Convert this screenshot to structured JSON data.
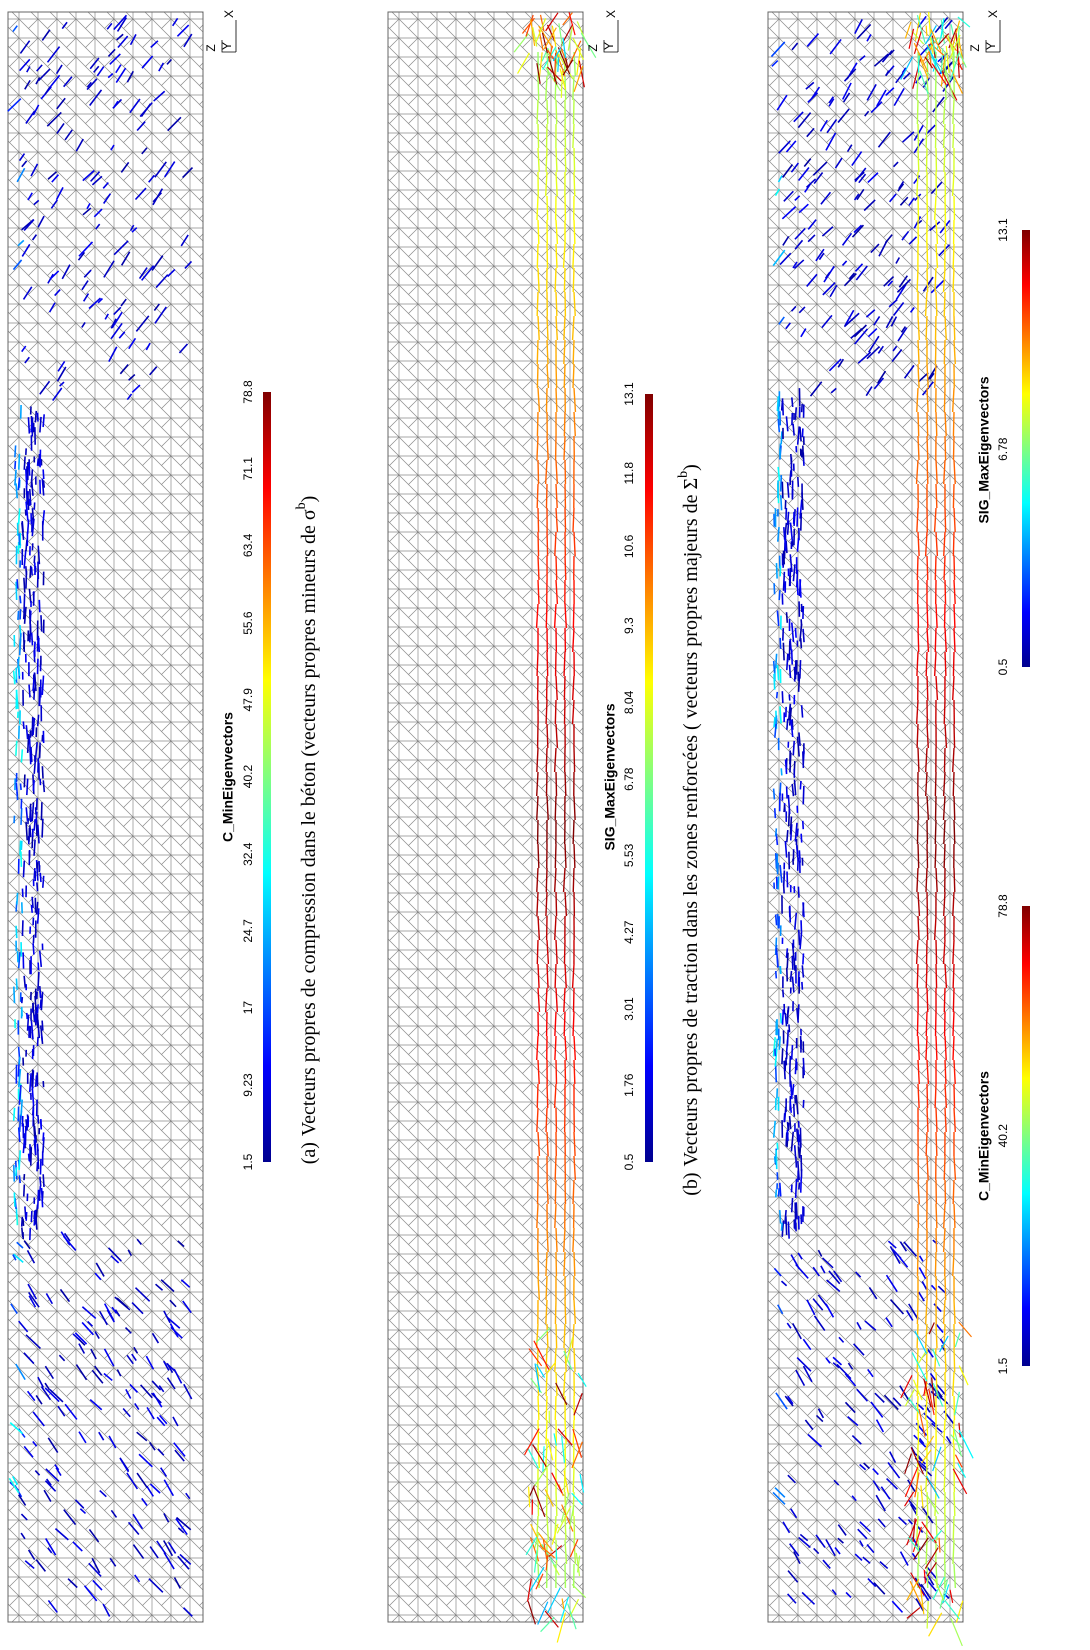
{
  "panels": [
    {
      "colorbars": [
        {
          "title": "C_MinEigenvectors",
          "ticks": [
            1.5,
            9.23,
            17,
            24.7,
            32.4,
            40.2,
            47.9,
            55.6,
            63.4,
            71.1,
            78.8
          ]
        }
      ],
      "axes": [
        "Z",
        "Y",
        "X"
      ],
      "caption": {
        "label": "(a)",
        "text": "Vecteurs propres de compression dans le béton (vecteurs propres mineurs de σ",
        "sup": "b",
        "end": ")"
      }
    },
    {
      "colorbars": [
        {
          "title": "SIG_MaxEigenvectors",
          "ticks": [
            0.5,
            1.76,
            3.01,
            4.27,
            5.53,
            6.78,
            8.04,
            9.3,
            10.6,
            11.8,
            13.1
          ]
        }
      ],
      "axes": [
        "Z",
        "Y",
        "X"
      ],
      "caption": {
        "label": "(b)",
        "text": "Vecteurs propres de traction dans les zones renforcées ( vecteurs propres majeurs de Σ",
        "sup": "b",
        "end": ")"
      }
    },
    {
      "colorbars": [
        {
          "title": "C_MinEigenvectors",
          "ticks": [
            1.5,
            40.2,
            78.8
          ]
        },
        {
          "title": "SIG_MaxEigenvectors",
          "ticks": [
            0.5,
            6.78,
            13.1
          ]
        }
      ],
      "axes": [
        "Z",
        "Y",
        "X"
      ]
    }
  ]
}
